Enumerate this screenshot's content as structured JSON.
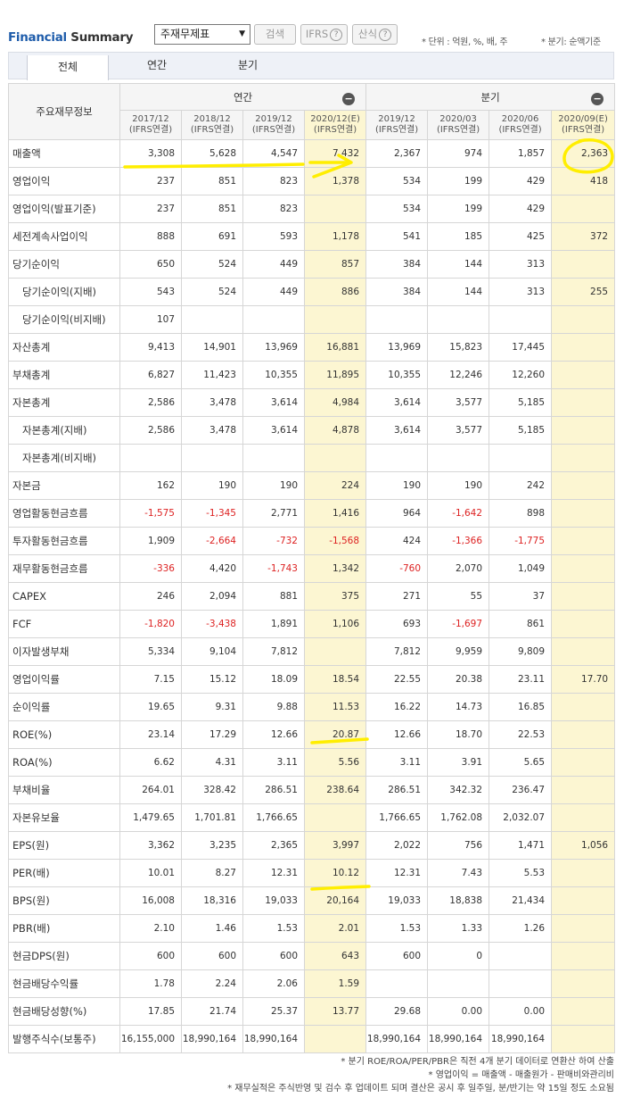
{
  "header": {
    "title_part1": "Financial",
    "title_part2": "Summary",
    "select_value": "주재무제표",
    "search_button": "검색",
    "ifrs_button": "IFRS",
    "formula_button": "산식",
    "help_icon": "?",
    "unit_note": "* 단위 : 억원, %, 배, 주",
    "period_note": "* 분기: 순액기준"
  },
  "tabs": [
    "전체",
    "연간",
    "분기"
  ],
  "table": {
    "row_header": "주요재무정보",
    "annual_label": "연간",
    "quarter_label": "분기",
    "collapse_icon": "−",
    "annual_periods": [
      {
        "date": "2017/12",
        "basis": "(IFRS연결)"
      },
      {
        "date": "2018/12",
        "basis": "(IFRS연결)"
      },
      {
        "date": "2019/12",
        "basis": "(IFRS연결)"
      },
      {
        "date": "2020/12(E)",
        "basis": "(IFRS연결)"
      }
    ],
    "quarter_periods": [
      {
        "date": "2019/12",
        "basis": "(IFRS연결)"
      },
      {
        "date": "2020/03",
        "basis": "(IFRS연결)"
      },
      {
        "date": "2020/06",
        "basis": "(IFRS연결)"
      },
      {
        "date": "2020/09(E)",
        "basis": "(IFRS연결)"
      }
    ],
    "rows": [
      {
        "label": "매출액",
        "sub": false,
        "values": [
          "3,308",
          "5,628",
          "4,547",
          "7,432",
          "2,367",
          "974",
          "1,857",
          "2,363"
        ]
      },
      {
        "label": "영업이익",
        "sub": false,
        "values": [
          "237",
          "851",
          "823",
          "1,378",
          "534",
          "199",
          "429",
          "418"
        ]
      },
      {
        "label": "영업이익(발표기준)",
        "sub": false,
        "values": [
          "237",
          "851",
          "823",
          "",
          "534",
          "199",
          "429",
          ""
        ]
      },
      {
        "label": "세전계속사업이익",
        "sub": false,
        "values": [
          "888",
          "691",
          "593",
          "1,178",
          "541",
          "185",
          "425",
          "372"
        ]
      },
      {
        "label": "당기순이익",
        "sub": false,
        "values": [
          "650",
          "524",
          "449",
          "857",
          "384",
          "144",
          "313",
          ""
        ]
      },
      {
        "label": "당기순이익(지배)",
        "sub": true,
        "values": [
          "543",
          "524",
          "449",
          "886",
          "384",
          "144",
          "313",
          "255"
        ]
      },
      {
        "label": "당기순이익(비지배)",
        "sub": true,
        "values": [
          "107",
          "",
          "",
          "",
          "",
          "",
          "",
          ""
        ]
      },
      {
        "label": "자산총계",
        "sub": false,
        "values": [
          "9,413",
          "14,901",
          "13,969",
          "16,881",
          "13,969",
          "15,823",
          "17,445",
          ""
        ]
      },
      {
        "label": "부채총계",
        "sub": false,
        "values": [
          "6,827",
          "11,423",
          "10,355",
          "11,895",
          "10,355",
          "12,246",
          "12,260",
          ""
        ]
      },
      {
        "label": "자본총계",
        "sub": false,
        "values": [
          "2,586",
          "3,478",
          "3,614",
          "4,984",
          "3,614",
          "3,577",
          "5,185",
          ""
        ]
      },
      {
        "label": "자본총계(지배)",
        "sub": true,
        "values": [
          "2,586",
          "3,478",
          "3,614",
          "4,878",
          "3,614",
          "3,577",
          "5,185",
          ""
        ]
      },
      {
        "label": "자본총계(비지배)",
        "sub": true,
        "values": [
          "",
          "",
          "",
          "",
          "",
          "",
          "",
          ""
        ]
      },
      {
        "label": "자본금",
        "sub": false,
        "values": [
          "162",
          "190",
          "190",
          "224",
          "190",
          "190",
          "242",
          ""
        ]
      },
      {
        "label": "영업활동현금흐름",
        "sub": false,
        "values": [
          "-1,575",
          "-1,345",
          "2,771",
          "1,416",
          "964",
          "-1,642",
          "898",
          ""
        ]
      },
      {
        "label": "투자활동현금흐름",
        "sub": false,
        "values": [
          "1,909",
          "-2,664",
          "-732",
          "-1,568",
          "424",
          "-1,366",
          "-1,775",
          ""
        ]
      },
      {
        "label": "재무활동현금흐름",
        "sub": false,
        "values": [
          "-336",
          "4,420",
          "-1,743",
          "1,342",
          "-760",
          "2,070",
          "1,049",
          ""
        ]
      },
      {
        "label": "CAPEX",
        "sub": false,
        "values": [
          "246",
          "2,094",
          "881",
          "375",
          "271",
          "55",
          "37",
          ""
        ]
      },
      {
        "label": "FCF",
        "sub": false,
        "values": [
          "-1,820",
          "-3,438",
          "1,891",
          "1,106",
          "693",
          "-1,697",
          "861",
          ""
        ]
      },
      {
        "label": "이자발생부채",
        "sub": false,
        "values": [
          "5,334",
          "9,104",
          "7,812",
          "",
          "7,812",
          "9,959",
          "9,809",
          ""
        ]
      },
      {
        "label": "영업이익률",
        "sub": false,
        "values": [
          "7.15",
          "15.12",
          "18.09",
          "18.54",
          "22.55",
          "20.38",
          "23.11",
          "17.70"
        ]
      },
      {
        "label": "순이익률",
        "sub": false,
        "values": [
          "19.65",
          "9.31",
          "9.88",
          "11.53",
          "16.22",
          "14.73",
          "16.85",
          ""
        ]
      },
      {
        "label": "ROE(%)",
        "sub": false,
        "values": [
          "23.14",
          "17.29",
          "12.66",
          "20.87",
          "12.66",
          "18.70",
          "22.53",
          ""
        ]
      },
      {
        "label": "ROA(%)",
        "sub": false,
        "values": [
          "6.62",
          "4.31",
          "3.11",
          "5.56",
          "3.11",
          "3.91",
          "5.65",
          ""
        ]
      },
      {
        "label": "부채비율",
        "sub": false,
        "values": [
          "264.01",
          "328.42",
          "286.51",
          "238.64",
          "286.51",
          "342.32",
          "236.47",
          ""
        ]
      },
      {
        "label": "자본유보율",
        "sub": false,
        "values": [
          "1,479.65",
          "1,701.81",
          "1,766.65",
          "",
          "1,766.65",
          "1,762.08",
          "2,032.07",
          ""
        ]
      },
      {
        "label": "EPS(원)",
        "sub": false,
        "values": [
          "3,362",
          "3,235",
          "2,365",
          "3,997",
          "2,022",
          "756",
          "1,471",
          "1,056"
        ]
      },
      {
        "label": "PER(배)",
        "sub": false,
        "values": [
          "10.01",
          "8.27",
          "12.31",
          "10.12",
          "12.31",
          "7.43",
          "5.53",
          ""
        ]
      },
      {
        "label": "BPS(원)",
        "sub": false,
        "values": [
          "16,008",
          "18,316",
          "19,033",
          "20,164",
          "19,033",
          "18,838",
          "21,434",
          ""
        ]
      },
      {
        "label": "PBR(배)",
        "sub": false,
        "values": [
          "2.10",
          "1.46",
          "1.53",
          "2.01",
          "1.53",
          "1.33",
          "1.26",
          ""
        ]
      },
      {
        "label": "현금DPS(원)",
        "sub": false,
        "values": [
          "600",
          "600",
          "600",
          "643",
          "600",
          "0",
          "",
          ""
        ]
      },
      {
        "label": "현금배당수익률",
        "sub": false,
        "values": [
          "1.78",
          "2.24",
          "2.06",
          "1.59",
          "",
          "",
          "",
          ""
        ]
      },
      {
        "label": "현금배당성향(%)",
        "sub": false,
        "values": [
          "17.85",
          "21.74",
          "25.37",
          "13.77",
          "29.68",
          "0.00",
          "0.00",
          ""
        ]
      },
      {
        "label": "발행주식수(보통주)",
        "sub": false,
        "values": [
          "16,155,000",
          "18,990,164",
          "18,990,164",
          "",
          "18,990,164",
          "18,990,164",
          "18,990,164",
          ""
        ]
      }
    ]
  },
  "footnotes": [
    "* 분기 ROE/ROA/PER/PBR은 직전 4개 분기 데이터로 연환산 하여 산출",
    "* 영업이익 = 매출액 - 매출원가 - 판매비와관리비",
    "* 재무실적은 주식반영 및 검수 후 업데이트 되며 결산은 공시 후 일주일, 분/반기는 약 15일 정도 소요됨"
  ],
  "colors": {
    "brand_blue": "#1f5dab",
    "negative_red": "#dd2222",
    "estimate_bg": "#fcf6d2",
    "highlighter": "#ffee00"
  }
}
